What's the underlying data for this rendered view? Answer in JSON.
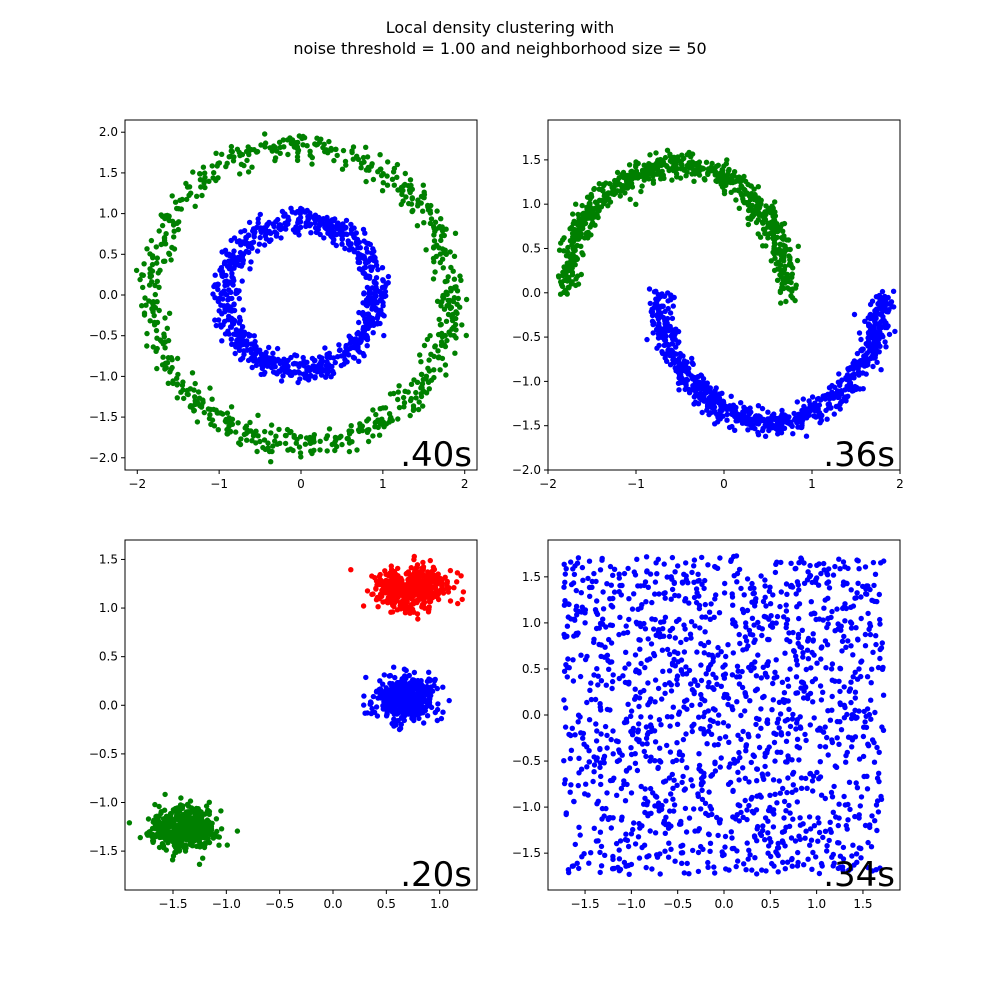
{
  "figure": {
    "title_line1": "Local density clustering with",
    "title_line2": "noise threshold = 1.00 and neighborhood size = 50"
  },
  "chart_data": [
    {
      "type": "scatter",
      "dataset": "circles",
      "time_label": ".40s",
      "xlim": [
        -2.15,
        2.15
      ],
      "ylim": [
        -2.15,
        2.15
      ],
      "xticks": [
        -2,
        -1,
        0,
        1,
        2
      ],
      "yticks": [
        -2.0,
        -1.5,
        -1.0,
        -0.5,
        0.0,
        0.5,
        1.0,
        1.5,
        2.0
      ],
      "grid": false,
      "series": [
        {
          "color": "#008000",
          "shape": "ring",
          "radius": 1.83,
          "noise": 0.09,
          "n": 700
        },
        {
          "color": "#0000ff",
          "shape": "ring",
          "radius": 0.92,
          "noise": 0.08,
          "n": 800
        }
      ]
    },
    {
      "type": "scatter",
      "dataset": "moons",
      "time_label": ".36s",
      "xlim": [
        -2.0,
        2.0
      ],
      "ylim": [
        -2.0,
        1.95
      ],
      "xticks": [
        -2,
        -1,
        0,
        1,
        2
      ],
      "yticks": [
        -2.0,
        -1.5,
        -1.0,
        -0.5,
        0.0,
        0.5,
        1.0,
        1.5
      ],
      "grid": false,
      "series": [
        {
          "color": "#008000",
          "shape": "arc",
          "cx": -0.53,
          "cy": -0.06,
          "rx": 1.26,
          "ry": 1.5,
          "t_start": 0.03,
          "t_end": 3.1,
          "direction": "upper",
          "noise": 0.07,
          "n": 700
        },
        {
          "color": "#0000ff",
          "shape": "arc",
          "cx": 0.53,
          "cy": 0.04,
          "rx": 1.26,
          "ry": 1.5,
          "t_start": 0.03,
          "t_end": 3.1,
          "direction": "lower",
          "noise": 0.07,
          "n": 800
        }
      ]
    },
    {
      "type": "scatter",
      "dataset": "blobs",
      "time_label": ".20s",
      "xlim": [
        -1.95,
        1.35
      ],
      "ylim": [
        -1.9,
        1.7
      ],
      "xticks": [
        -1.5,
        -1.0,
        -0.5,
        0.0,
        0.5,
        1.0
      ],
      "yticks": [
        -1.5,
        -1.0,
        -0.5,
        0.0,
        0.5,
        1.0,
        1.5
      ],
      "grid": false,
      "series": [
        {
          "color": "#ff0000",
          "shape": "blob",
          "cx": 0.72,
          "cy": 1.2,
          "sx": 0.17,
          "sy": 0.11,
          "n": 500
        },
        {
          "color": "#0000ff",
          "shape": "blob",
          "cx": 0.68,
          "cy": 0.07,
          "sx": 0.15,
          "sy": 0.11,
          "n": 500
        },
        {
          "color": "#008000",
          "shape": "blob",
          "cx": -1.4,
          "cy": -1.27,
          "sx": 0.15,
          "sy": 0.11,
          "n": 500
        }
      ]
    },
    {
      "type": "scatter",
      "dataset": "uniform",
      "time_label": ".34s",
      "xlim": [
        -1.9,
        1.9
      ],
      "ylim": [
        -1.9,
        1.9
      ],
      "xticks": [
        -1.5,
        -1.0,
        -0.5,
        0.0,
        0.5,
        1.0,
        1.5
      ],
      "yticks": [
        -1.5,
        -1.0,
        -0.5,
        0.0,
        0.5,
        1.0,
        1.5
      ],
      "grid": false,
      "series": [
        {
          "color": "#0000ff",
          "shape": "uniform",
          "xmin": -1.73,
          "xmax": 1.73,
          "ymin": -1.73,
          "ymax": 1.73,
          "n": 1500
        }
      ]
    }
  ]
}
